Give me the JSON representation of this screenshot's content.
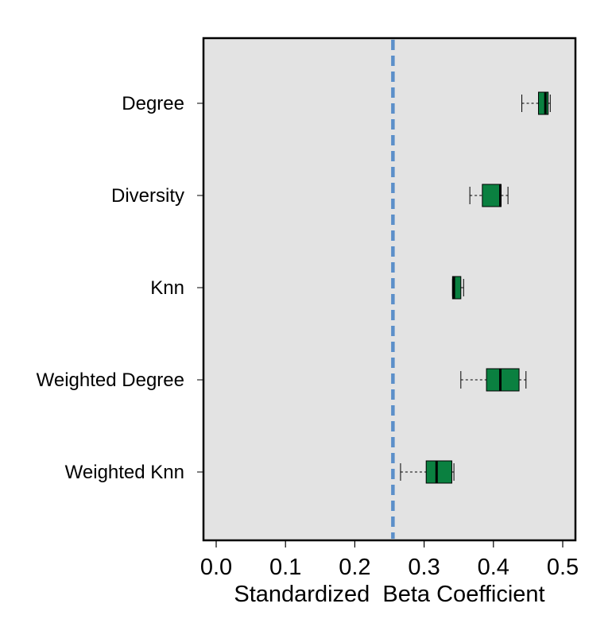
{
  "chart_data": {
    "type": "boxplot",
    "orientation": "horizontal",
    "title": "",
    "xlabel": "Standardized  Beta Coefficient",
    "ylabel": "",
    "xlim": [
      -0.02,
      0.52
    ],
    "xticks": [
      0.0,
      0.1,
      0.2,
      0.3,
      0.4,
      0.5
    ],
    "xtick_labels": [
      "0.0",
      "0.1",
      "0.2",
      "0.3",
      "0.4",
      "0.5"
    ],
    "reference_line": {
      "x": 0.255,
      "style": "dashed",
      "color": "#5B8FC9"
    },
    "categories": [
      "Degree",
      "Diversity",
      "Knn",
      "Weighted Degree",
      "Weighted Knn"
    ],
    "boxes": [
      {
        "name": "Degree",
        "whisker_low": 0.441,
        "q1": 0.465,
        "median": 0.475,
        "q3": 0.479,
        "whisker_high": 0.482
      },
      {
        "name": "Diversity",
        "whisker_low": 0.366,
        "q1": 0.384,
        "median": 0.41,
        "q3": 0.411,
        "whisker_high": 0.421
      },
      {
        "name": "Knn",
        "whisker_low": 0.341,
        "q1": 0.341,
        "median": 0.343,
        "q3": 0.353,
        "whisker_high": 0.357
      },
      {
        "name": "Weighted Degree",
        "whisker_low": 0.353,
        "q1": 0.39,
        "median": 0.41,
        "q3": 0.437,
        "whisker_high": 0.447
      },
      {
        "name": "Weighted Knn",
        "whisker_low": 0.266,
        "q1": 0.303,
        "median": 0.318,
        "q3": 0.34,
        "whisker_high": 0.343
      }
    ],
    "colors": {
      "box_fill": "#0A8040",
      "panel_bg": "#E3E3E3",
      "reference_line": "#5B8FC9"
    }
  }
}
